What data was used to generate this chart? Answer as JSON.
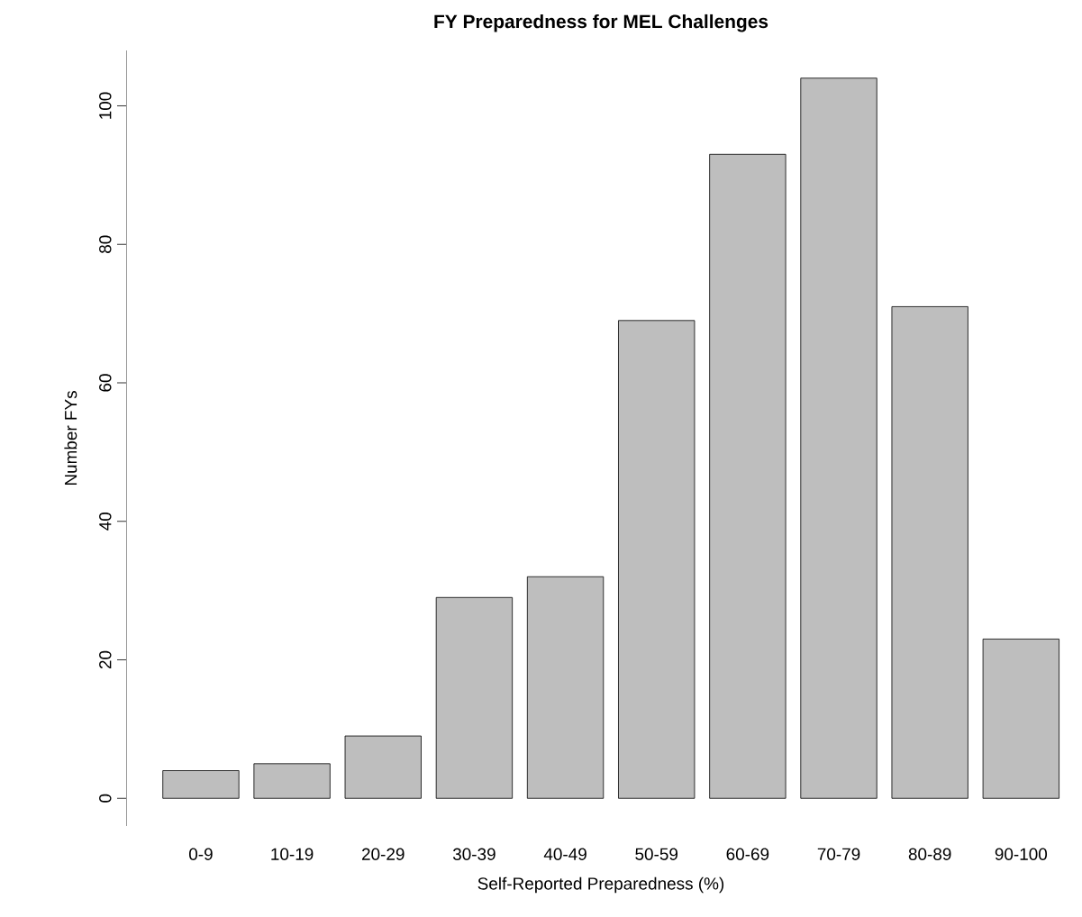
{
  "chart_data": {
    "type": "bar",
    "title": "FY Preparedness for MEL Challenges",
    "xlabel": "Self-Reported Preparedness (%)",
    "ylabel": "Number FYs",
    "categories": [
      "0-9",
      "10-19",
      "20-29",
      "30-39",
      "40-49",
      "50-59",
      "60-69",
      "70-79",
      "80-89",
      "90-100"
    ],
    "values": [
      4,
      5,
      9,
      29,
      32,
      69,
      93,
      104,
      71,
      23
    ],
    "color": "#bebebe",
    "ylim": [
      -4,
      108
    ],
    "yticks": [
      0,
      20,
      40,
      60,
      80,
      100
    ]
  }
}
